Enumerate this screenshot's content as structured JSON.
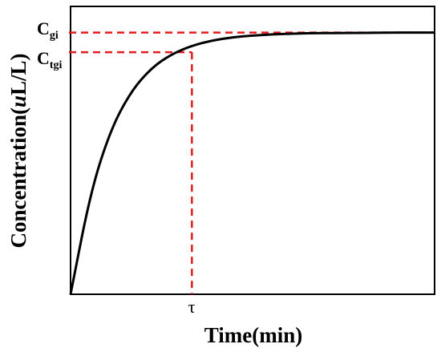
{
  "chart_data": {
    "type": "line",
    "ylabel": {
      "prefix": "Concentration(",
      "italic": "u",
      "suffix": "L/L)"
    },
    "xlabel": "Time(min)",
    "series": [
      {
        "x": [
          0,
          0.5,
          1,
          1.5,
          2,
          2.5,
          3,
          3.5,
          4,
          4.5,
          5,
          5.5,
          6,
          6.5,
          7,
          7.5,
          8,
          8.5,
          9
        ],
        "y": [
          0,
          0.393,
          0.632,
          0.777,
          0.865,
          0.918,
          0.95,
          0.97,
          0.982,
          0.989,
          0.993,
          0.996,
          0.998,
          0.998,
          0.999,
          0.999,
          1.0,
          1.0,
          1.0
        ]
      }
    ],
    "xlim": [
      0,
      9
    ],
    "ylim": [
      0,
      1.1
    ],
    "annotations": {
      "cgi": {
        "base": "C",
        "sub": "gi",
        "y": 1.0
      },
      "ctgi": {
        "base": "C",
        "sub": "tgi",
        "y": 0.925
      },
      "tau": {
        "label": "τ",
        "x": 3.0
      }
    },
    "colors": {
      "curve": "#000000",
      "reference": "#e41a1c"
    }
  }
}
